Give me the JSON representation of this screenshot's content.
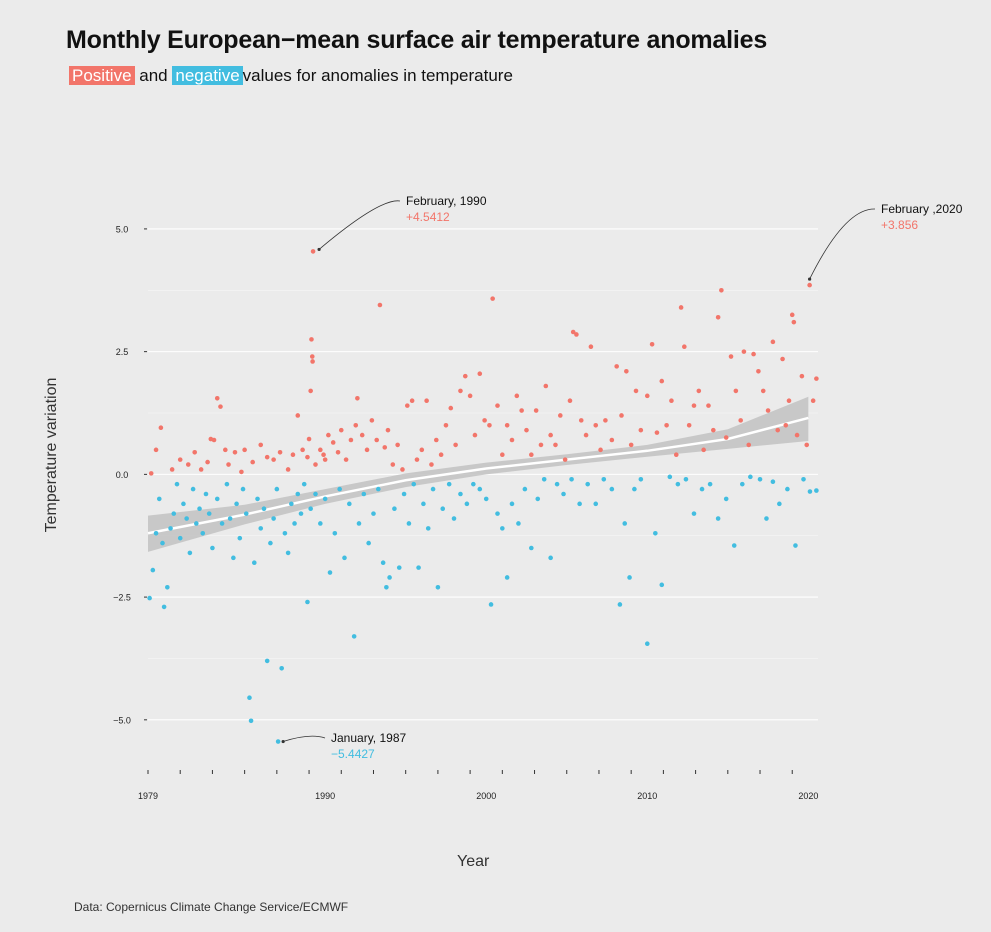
{
  "title": "Monthly European−mean surface air temperature anomalies",
  "subtitle": {
    "positive_label": "Positive",
    "joiner": "and",
    "negative_label": "negative",
    "rest": "values for anomalies in temperature"
  },
  "caption": "Data: Copernicus Climate Change Service/ECMWF",
  "colors": {
    "positive": "#f2756a",
    "negative": "#42bde0",
    "background": "#ebebeb",
    "trend": "#ffffff",
    "band": "#c4c4c4"
  },
  "chart_data": {
    "type": "scatter",
    "xlabel": "Year",
    "ylabel": "Temperature variation",
    "xlim": [
      1979,
      2020.6
    ],
    "ylim": [
      -5.9,
      6.2
    ],
    "x_ticks": [
      1979,
      1990,
      2000,
      2010,
      2020
    ],
    "x_tick_labels": [
      "1979",
      "1990",
      "2000",
      "2010",
      "2020"
    ],
    "y_ticks": [
      5.0,
      2.5,
      0.0,
      -2.5,
      -5.0
    ],
    "y_tick_labels": [
      "5.0",
      "2.5",
      "0.0",
      "−2.5",
      "−5.0"
    ],
    "grid": true,
    "series": [
      {
        "points": [
          [
            1979.1,
            -2.52
          ],
          [
            1979.3,
            -1.95
          ],
          [
            1979.5,
            -1.2
          ],
          [
            1979.7,
            -0.5
          ],
          [
            1979.9,
            -1.4
          ],
          [
            1980.0,
            -2.7
          ],
          [
            1980.2,
            -2.3
          ],
          [
            1980.4,
            -1.1
          ],
          [
            1980.6,
            -0.8
          ],
          [
            1980.8,
            -0.2
          ],
          [
            1981.0,
            -1.3
          ],
          [
            1981.2,
            -0.6
          ],
          [
            1981.4,
            -0.9
          ],
          [
            1981.6,
            -1.6
          ],
          [
            1981.8,
            -0.3
          ],
          [
            1982.0,
            -1.0
          ],
          [
            1982.2,
            -0.7
          ],
          [
            1982.4,
            -1.2
          ],
          [
            1982.6,
            -0.4
          ],
          [
            1982.8,
            -0.8
          ],
          [
            1983.0,
            -1.5
          ],
          [
            1983.3,
            -0.5
          ],
          [
            1983.6,
            -1.0
          ],
          [
            1983.9,
            -0.2
          ],
          [
            1984.1,
            -0.9
          ],
          [
            1984.3,
            -1.7
          ],
          [
            1984.5,
            -0.6
          ],
          [
            1984.7,
            -1.3
          ],
          [
            1984.9,
            -0.3
          ],
          [
            1985.1,
            -0.8
          ],
          [
            1985.3,
            -4.55
          ],
          [
            1985.4,
            -5.02
          ],
          [
            1985.6,
            -1.8
          ],
          [
            1985.8,
            -0.5
          ],
          [
            1986.0,
            -1.1
          ],
          [
            1986.2,
            -0.7
          ],
          [
            1986.4,
            -3.8
          ],
          [
            1986.6,
            -1.4
          ],
          [
            1986.8,
            -0.9
          ],
          [
            1987.0,
            -0.3
          ],
          [
            1987.08,
            -5.4427
          ],
          [
            1987.3,
            -3.95
          ],
          [
            1987.5,
            -1.2
          ],
          [
            1987.7,
            -1.6
          ],
          [
            1987.9,
            -0.6
          ],
          [
            1988.1,
            -1.0
          ],
          [
            1988.3,
            -0.4
          ],
          [
            1988.5,
            -0.8
          ],
          [
            1988.7,
            -0.2
          ],
          [
            1988.9,
            -2.6
          ],
          [
            1989.1,
            -0.7
          ],
          [
            1989.4,
            -0.4
          ],
          [
            1989.7,
            -1.0
          ],
          [
            1990.0,
            -0.5
          ],
          [
            1990.3,
            -2.0
          ],
          [
            1990.6,
            -1.2
          ],
          [
            1990.9,
            -0.3
          ],
          [
            1991.2,
            -1.7
          ],
          [
            1991.5,
            -0.6
          ],
          [
            1991.8,
            -3.3
          ],
          [
            1992.1,
            -1.0
          ],
          [
            1992.4,
            -0.4
          ],
          [
            1992.7,
            -1.4
          ],
          [
            1993.0,
            -0.8
          ],
          [
            1993.3,
            -0.3
          ],
          [
            1993.6,
            -1.8
          ],
          [
            1993.8,
            -2.3
          ],
          [
            1994.0,
            -2.1
          ],
          [
            1994.3,
            -0.7
          ],
          [
            1994.6,
            -1.9
          ],
          [
            1994.9,
            -0.4
          ],
          [
            1995.2,
            -1.0
          ],
          [
            1995.5,
            -0.2
          ],
          [
            1995.8,
            -1.9
          ],
          [
            1996.1,
            -0.6
          ],
          [
            1996.4,
            -1.1
          ],
          [
            1996.7,
            -0.3
          ],
          [
            1997.0,
            -2.3
          ],
          [
            1997.3,
            -0.7
          ],
          [
            1997.7,
            -0.2
          ],
          [
            1998.0,
            -0.9
          ],
          [
            1998.4,
            -0.4
          ],
          [
            1998.8,
            -0.6
          ],
          [
            1999.2,
            -0.2
          ],
          [
            1999.6,
            -0.3
          ],
          [
            2000.0,
            -0.5
          ],
          [
            2000.3,
            -2.65
          ],
          [
            2000.7,
            -0.8
          ],
          [
            2001.0,
            -1.1
          ],
          [
            2001.3,
            -2.1
          ],
          [
            2001.6,
            -0.6
          ],
          [
            2002.0,
            -1.0
          ],
          [
            2002.4,
            -0.3
          ],
          [
            2002.8,
            -1.5
          ],
          [
            2003.2,
            -0.5
          ],
          [
            2003.6,
            -0.1
          ],
          [
            2004.0,
            -1.7
          ],
          [
            2004.4,
            -0.2
          ],
          [
            2004.8,
            -0.4
          ],
          [
            2005.3,
            -0.1
          ],
          [
            2005.8,
            -0.6
          ],
          [
            2006.3,
            -0.2
          ],
          [
            2006.8,
            -0.6
          ],
          [
            2007.3,
            -0.1
          ],
          [
            2007.8,
            -0.3
          ],
          [
            2008.3,
            -2.65
          ],
          [
            2008.6,
            -1.0
          ],
          [
            2008.9,
            -2.1
          ],
          [
            2009.2,
            -0.3
          ],
          [
            2009.6,
            -0.1
          ],
          [
            2010.0,
            -3.45
          ],
          [
            2010.5,
            -1.2
          ],
          [
            2010.9,
            -2.25
          ],
          [
            2011.4,
            -0.05
          ],
          [
            2011.9,
            -0.2
          ],
          [
            2012.4,
            -0.1
          ],
          [
            2012.9,
            -0.8
          ],
          [
            2013.4,
            -0.3
          ],
          [
            2013.9,
            -0.2
          ],
          [
            2014.4,
            -0.9
          ],
          [
            2014.9,
            -0.5
          ],
          [
            2015.4,
            -1.45
          ],
          [
            2015.9,
            -0.2
          ],
          [
            2016.4,
            -0.05
          ],
          [
            2017.0,
            -0.1
          ],
          [
            2017.4,
            -0.9
          ],
          [
            2017.8,
            -0.15
          ],
          [
            2018.2,
            -0.6
          ],
          [
            2018.7,
            -0.3
          ],
          [
            2019.2,
            -1.45
          ],
          [
            2019.7,
            -0.1
          ],
          [
            2020.1,
            -0.35
          ],
          [
            2020.5,
            -0.33
          ]
        ],
        "color_key": "negative"
      },
      {
        "points": [
          [
            1979.2,
            0.02
          ],
          [
            1979.5,
            0.5
          ],
          [
            1979.8,
            0.95
          ],
          [
            1980.5,
            0.1
          ],
          [
            1981.0,
            0.3
          ],
          [
            1981.5,
            0.2
          ],
          [
            1981.9,
            0.45
          ],
          [
            1982.3,
            0.1
          ],
          [
            1982.7,
            0.25
          ],
          [
            1982.9,
            0.72
          ],
          [
            1983.1,
            0.7
          ],
          [
            1983.3,
            1.55
          ],
          [
            1983.5,
            1.38
          ],
          [
            1983.8,
            0.5
          ],
          [
            1984.0,
            0.2
          ],
          [
            1984.4,
            0.45
          ],
          [
            1984.8,
            0.05
          ],
          [
            1985.0,
            0.5
          ],
          [
            1985.5,
            0.25
          ],
          [
            1986.0,
            0.6
          ],
          [
            1986.4,
            0.35
          ],
          [
            1986.8,
            0.3
          ],
          [
            1987.2,
            0.45
          ],
          [
            1987.7,
            0.1
          ],
          [
            1988.0,
            0.4
          ],
          [
            1988.3,
            1.2
          ],
          [
            1988.6,
            0.5
          ],
          [
            1988.9,
            0.35
          ],
          [
            1989.0,
            0.72
          ],
          [
            1989.1,
            1.7
          ],
          [
            1989.15,
            2.75
          ],
          [
            1989.2,
            2.4
          ],
          [
            1989.22,
            2.3
          ],
          [
            1989.25,
            4.5412
          ],
          [
            1989.4,
            0.2
          ],
          [
            1989.7,
            0.5
          ],
          [
            1989.9,
            0.4
          ],
          [
            1990.0,
            0.3
          ],
          [
            1990.2,
            0.8
          ],
          [
            1990.5,
            0.65
          ],
          [
            1990.8,
            0.45
          ],
          [
            1991.0,
            0.9
          ],
          [
            1991.3,
            0.3
          ],
          [
            1991.6,
            0.7
          ],
          [
            1991.9,
            1.0
          ],
          [
            1992.0,
            1.55
          ],
          [
            1992.3,
            0.8
          ],
          [
            1992.6,
            0.5
          ],
          [
            1992.9,
            1.1
          ],
          [
            1993.2,
            0.7
          ],
          [
            1993.4,
            3.45
          ],
          [
            1993.7,
            0.55
          ],
          [
            1993.9,
            0.9
          ],
          [
            1994.2,
            0.2
          ],
          [
            1994.5,
            0.6
          ],
          [
            1994.8,
            0.1
          ],
          [
            1995.1,
            1.4
          ],
          [
            1995.4,
            1.5
          ],
          [
            1995.7,
            0.3
          ],
          [
            1996.0,
            0.5
          ],
          [
            1996.3,
            1.5
          ],
          [
            1996.6,
            0.2
          ],
          [
            1996.9,
            0.7
          ],
          [
            1997.2,
            0.4
          ],
          [
            1997.5,
            1.0
          ],
          [
            1997.8,
            1.35
          ],
          [
            1998.1,
            0.6
          ],
          [
            1998.4,
            1.7
          ],
          [
            1998.7,
            2.0
          ],
          [
            1999.0,
            1.6
          ],
          [
            1999.3,
            0.8
          ],
          [
            1999.6,
            2.05
          ],
          [
            1999.9,
            1.1
          ],
          [
            2000.2,
            1.0
          ],
          [
            2000.4,
            3.58
          ],
          [
            2000.7,
            1.4
          ],
          [
            2001.0,
            0.4
          ],
          [
            2001.3,
            1.0
          ],
          [
            2001.6,
            0.7
          ],
          [
            2001.9,
            1.6
          ],
          [
            2002.2,
            1.3
          ],
          [
            2002.5,
            0.9
          ],
          [
            2002.8,
            0.4
          ],
          [
            2003.1,
            1.3
          ],
          [
            2003.4,
            0.6
          ],
          [
            2003.7,
            1.8
          ],
          [
            2004.0,
            0.8
          ],
          [
            2004.3,
            0.6
          ],
          [
            2004.6,
            1.2
          ],
          [
            2004.9,
            0.3
          ],
          [
            2005.2,
            1.5
          ],
          [
            2005.4,
            2.9
          ],
          [
            2005.6,
            2.85
          ],
          [
            2005.9,
            1.1
          ],
          [
            2006.2,
            0.8
          ],
          [
            2006.5,
            2.6
          ],
          [
            2006.8,
            1.0
          ],
          [
            2007.1,
            0.5
          ],
          [
            2007.4,
            1.1
          ],
          [
            2007.8,
            0.7
          ],
          [
            2008.1,
            2.2
          ],
          [
            2008.4,
            1.2
          ],
          [
            2008.7,
            2.1
          ],
          [
            2009.0,
            0.6
          ],
          [
            2009.3,
            1.7
          ],
          [
            2009.6,
            0.9
          ],
          [
            2010.0,
            1.6
          ],
          [
            2010.3,
            2.65
          ],
          [
            2010.6,
            0.85
          ],
          [
            2010.9,
            1.9
          ],
          [
            2011.2,
            1.0
          ],
          [
            2011.5,
            1.5
          ],
          [
            2011.8,
            0.4
          ],
          [
            2012.1,
            3.4
          ],
          [
            2012.3,
            2.6
          ],
          [
            2012.6,
            1.0
          ],
          [
            2012.9,
            1.4
          ],
          [
            2013.2,
            1.7
          ],
          [
            2013.5,
            0.5
          ],
          [
            2013.8,
            1.4
          ],
          [
            2014.1,
            0.9
          ],
          [
            2014.4,
            3.2
          ],
          [
            2014.6,
            3.75
          ],
          [
            2014.9,
            0.75
          ],
          [
            2015.2,
            2.4
          ],
          [
            2015.5,
            1.7
          ],
          [
            2015.8,
            1.1
          ],
          [
            2016.0,
            2.5
          ],
          [
            2016.3,
            0.6
          ],
          [
            2016.6,
            2.45
          ],
          [
            2016.9,
            2.1
          ],
          [
            2017.2,
            1.7
          ],
          [
            2017.5,
            1.3
          ],
          [
            2017.8,
            2.7
          ],
          [
            2018.1,
            0.9
          ],
          [
            2018.4,
            2.35
          ],
          [
            2018.6,
            1.0
          ],
          [
            2018.8,
            1.5
          ],
          [
            2019.0,
            3.25
          ],
          [
            2019.1,
            3.1
          ],
          [
            2019.3,
            0.8
          ],
          [
            2019.6,
            2.0
          ],
          [
            2019.9,
            0.6
          ],
          [
            2020.08,
            3.856
          ],
          [
            2020.3,
            1.5
          ],
          [
            2020.5,
            1.95
          ]
        ],
        "color_key": "positive"
      }
    ],
    "trend": {
      "x": [
        1979,
        1985,
        1990,
        1995,
        2000,
        2005,
        2010,
        2015,
        2020
      ],
      "y": [
        -1.2,
        -0.82,
        -0.45,
        -0.12,
        0.12,
        0.3,
        0.48,
        0.72,
        1.15
      ],
      "band_low": [
        -1.58,
        -1.02,
        -0.6,
        -0.26,
        0.0,
        0.19,
        0.36,
        0.52,
        0.68
      ],
      "band_high": [
        -0.84,
        -0.62,
        -0.3,
        0.02,
        0.24,
        0.41,
        0.6,
        0.92,
        1.58
      ]
    },
    "annotations": [
      {
        "label": "February, 1990",
        "value": "+4.5412",
        "color_key": "positive"
      },
      {
        "label": "February ,2020",
        "value": "+3.856",
        "color_key": "positive"
      },
      {
        "label": "January, 1987",
        "value": "−5.4427",
        "color_key": "negative"
      }
    ]
  }
}
